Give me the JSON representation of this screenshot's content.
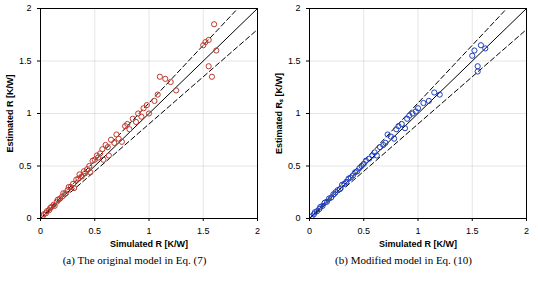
{
  "chart_data": [
    {
      "type": "scatter",
      "caption": "(a)    The original model in Eq. (7)",
      "x_label": "Simulated R [K/W]",
      "y_label": "Estimated R [K/W]",
      "xlim": [
        0,
        2
      ],
      "ylim": [
        0,
        2
      ],
      "xticks": [
        0,
        0.5,
        1,
        1.5,
        2
      ],
      "yticks": [
        0,
        0.5,
        1,
        1.5,
        2
      ],
      "grid": true,
      "color": "#c0392b",
      "marker": "open circle",
      "reference_lines": [
        {
          "slope": 1,
          "line_style": "solid"
        },
        {
          "slope": 1.1,
          "line_style": "dashed"
        },
        {
          "slope": 0.9,
          "line_style": "dashed"
        }
      ],
      "x": [
        0.02,
        0.03,
        0.05,
        0.06,
        0.08,
        0.09,
        0.1,
        0.12,
        0.13,
        0.15,
        0.16,
        0.18,
        0.2,
        0.21,
        0.23,
        0.25,
        0.26,
        0.28,
        0.3,
        0.31,
        0.33,
        0.35,
        0.36,
        0.38,
        0.4,
        0.41,
        0.43,
        0.45,
        0.46,
        0.48,
        0.5,
        0.52,
        0.53,
        0.55,
        0.57,
        0.58,
        0.6,
        0.62,
        0.63,
        0.65,
        0.68,
        0.7,
        0.72,
        0.75,
        0.78,
        0.8,
        0.82,
        0.85,
        0.88,
        0.9,
        0.93,
        0.95,
        0.98,
        1.0,
        1.05,
        1.08,
        1.1,
        1.15,
        1.2,
        1.25,
        1.5,
        1.52,
        1.55,
        1.55,
        1.58,
        1.6,
        1.62
      ],
      "values": [
        0.02,
        0.04,
        0.05,
        0.07,
        0.08,
        0.1,
        0.11,
        0.13,
        0.12,
        0.16,
        0.18,
        0.19,
        0.21,
        0.24,
        0.24,
        0.27,
        0.3,
        0.3,
        0.33,
        0.29,
        0.37,
        0.38,
        0.42,
        0.4,
        0.45,
        0.43,
        0.47,
        0.5,
        0.44,
        0.55,
        0.56,
        0.6,
        0.58,
        0.62,
        0.66,
        0.56,
        0.7,
        0.68,
        0.6,
        0.75,
        0.72,
        0.8,
        0.76,
        0.73,
        0.88,
        0.9,
        0.85,
        0.95,
        0.92,
        1.0,
        0.97,
        1.05,
        1.08,
        1.0,
        1.12,
        1.18,
        1.35,
        1.33,
        1.3,
        1.22,
        1.65,
        1.68,
        1.7,
        1.45,
        1.35,
        1.85,
        1.6
      ]
    },
    {
      "type": "scatter",
      "caption": "(b) Modified model in Eq. (10)",
      "x_label": "Simulated R [K/W]",
      "y_label": "Estimated Rₛ [K/W]",
      "xlim": [
        0,
        2
      ],
      "ylim": [
        0,
        2
      ],
      "xticks": [
        0,
        0.5,
        1,
        1.5,
        2
      ],
      "yticks": [
        0,
        0.5,
        1,
        1.5,
        2
      ],
      "grid": true,
      "color": "#1f3fbf",
      "marker": "open circle",
      "reference_lines": [
        {
          "slope": 1,
          "line_style": "solid"
        },
        {
          "slope": 1.1,
          "line_style": "dashed"
        },
        {
          "slope": 0.9,
          "line_style": "dashed"
        }
      ],
      "x": [
        0.02,
        0.04,
        0.05,
        0.07,
        0.09,
        0.1,
        0.12,
        0.14,
        0.16,
        0.18,
        0.2,
        0.22,
        0.24,
        0.26,
        0.28,
        0.3,
        0.32,
        0.34,
        0.36,
        0.38,
        0.4,
        0.42,
        0.44,
        0.46,
        0.48,
        0.5,
        0.52,
        0.55,
        0.58,
        0.6,
        0.62,
        0.65,
        0.68,
        0.7,
        0.72,
        0.75,
        0.78,
        0.8,
        0.82,
        0.85,
        0.88,
        0.9,
        0.92,
        0.95,
        0.98,
        1.0,
        1.05,
        1.1,
        1.15,
        1.2,
        1.5,
        1.52,
        1.55,
        1.58,
        1.62,
        1.55
      ],
      "values": [
        0.02,
        0.04,
        0.06,
        0.07,
        0.09,
        0.11,
        0.12,
        0.15,
        0.16,
        0.19,
        0.2,
        0.23,
        0.25,
        0.27,
        0.28,
        0.32,
        0.33,
        0.35,
        0.38,
        0.39,
        0.41,
        0.44,
        0.45,
        0.48,
        0.5,
        0.52,
        0.55,
        0.57,
        0.6,
        0.63,
        0.6,
        0.68,
        0.7,
        0.72,
        0.8,
        0.78,
        0.76,
        0.85,
        0.88,
        0.9,
        0.86,
        0.95,
        0.98,
        1.0,
        1.02,
        1.05,
        1.1,
        1.12,
        1.2,
        1.18,
        1.55,
        1.6,
        1.45,
        1.65,
        1.62,
        1.4
      ]
    }
  ]
}
